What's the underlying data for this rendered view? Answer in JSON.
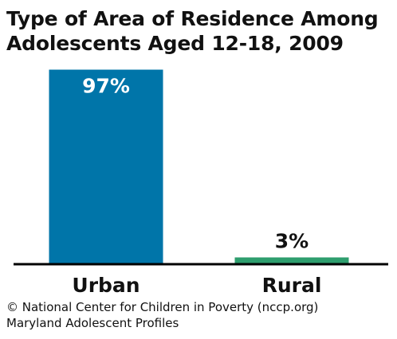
{
  "chart_data": {
    "type": "bar",
    "title_lines": [
      "Type of Area of Residence Among",
      "Adolescents Aged 12-18, 2009"
    ],
    "categories": [
      "Urban",
      "Rural"
    ],
    "values": [
      97,
      3
    ],
    "data_labels": [
      "97%",
      "3%"
    ],
    "ylim": [
      0,
      100
    ],
    "colors": [
      "#0075a9",
      "#2e9e6e"
    ],
    "grid": false,
    "legend": "none"
  },
  "footer": {
    "copyright": "© National Center for Children in Poverty (nccp.org)",
    "subtitle": "Maryland Adolescent Profiles"
  }
}
